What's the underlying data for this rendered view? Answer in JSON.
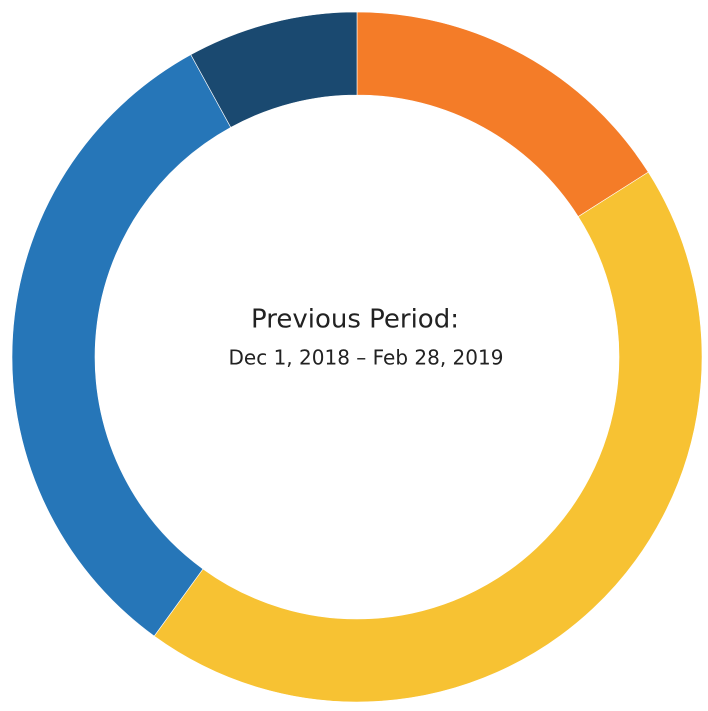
{
  "chart_data": {
    "type": "donut",
    "title": "Previous Period:",
    "subtitle": "Dec 1, 2018 – Feb 28, 2019",
    "values": [
      16,
      44,
      32,
      8
    ],
    "colors": [
      "#f47c28",
      "#f7c233",
      "#2676b8",
      "#1a4970"
    ]
  }
}
